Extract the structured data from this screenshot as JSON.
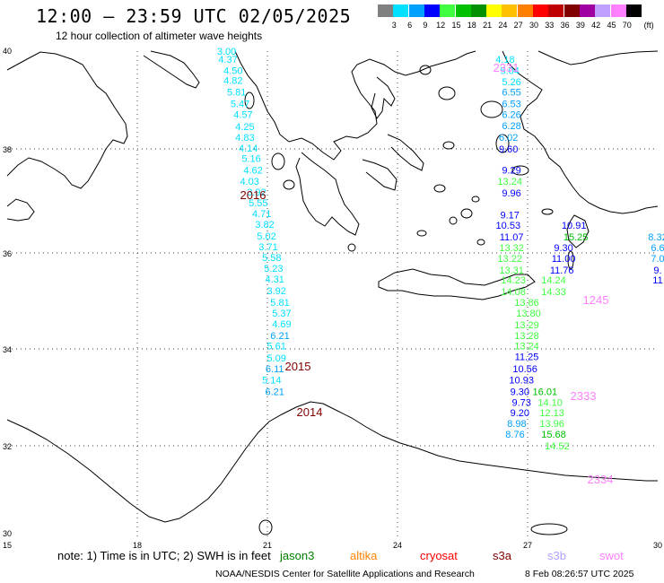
{
  "title": "12:00 – 23:59 UTC 02/05/2025",
  "subtitle": "12 hour collection of altimeter wave heights",
  "legend": {
    "unit": "(ft)",
    "bins": [
      {
        "label": "3",
        "color": "#808080"
      },
      {
        "label": "6",
        "color": "#00e0ff"
      },
      {
        "label": "9",
        "color": "#00a0ff"
      },
      {
        "label": "12",
        "color": "#0000ff"
      },
      {
        "label": "15",
        "color": "#40ff40"
      },
      {
        "label": "18",
        "color": "#00c000"
      },
      {
        "label": "21",
        "color": "#009000"
      },
      {
        "label": "24",
        "color": "#ffff00"
      },
      {
        "label": "27",
        "color": "#ffc000"
      },
      {
        "label": "30",
        "color": "#ff8000"
      },
      {
        "label": "33",
        "color": "#ff0000"
      },
      {
        "label": "36",
        "color": "#c00000"
      },
      {
        "label": "39",
        "color": "#800000"
      },
      {
        "label": "42",
        "color": "#a000a0"
      },
      {
        "label": "45",
        "color": "#c0a0ff"
      },
      {
        "label": "70",
        "color": "#ff80ff"
      },
      {
        "label": "",
        "color": "#000000"
      }
    ]
  },
  "axes": {
    "lon_ticks": [
      "15",
      "18",
      "21",
      "24",
      "27",
      "30"
    ],
    "lat_ticks": [
      "40",
      "38",
      "36",
      "34",
      "32",
      "30"
    ]
  },
  "tracks": [
    {
      "name": "track-2016",
      "time_label": "2016",
      "time_color": "#800000",
      "points": [
        {
          "v": "3.00",
          "lat": 39.93,
          "lon": 20.06
        },
        {
          "v": "4.37",
          "lat": 39.76,
          "lon": 20.09
        },
        {
          "v": "4.50",
          "lat": 39.53,
          "lon": 20.21
        },
        {
          "v": "4.82",
          "lat": 39.32,
          "lon": 20.21
        },
        {
          "v": "5.81",
          "lat": 39.08,
          "lon": 20.29
        },
        {
          "v": "5.47",
          "lat": 38.84,
          "lon": 20.37
        },
        {
          "v": "4.57",
          "lat": 38.62,
          "lon": 20.44
        },
        {
          "v": "4.25",
          "lat": 38.37,
          "lon": 20.48
        },
        {
          "v": "4.83",
          "lat": 38.15,
          "lon": 20.48
        },
        {
          "v": "4.14",
          "lat": 37.93,
          "lon": 20.56
        },
        {
          "v": "5.16",
          "lat": 37.71,
          "lon": 20.63
        },
        {
          "v": "4.62",
          "lat": 37.47,
          "lon": 20.67
        },
        {
          "v": "4.03",
          "lat": 37.24,
          "lon": 20.59
        },
        {
          "v": "3.92",
          "lat": 37.02,
          "lon": 20.75
        },
        {
          "v": "5.55",
          "lat": 36.8,
          "lon": 20.79
        },
        {
          "v": "4.71",
          "lat": 36.57,
          "lon": 20.87
        },
        {
          "v": "3.82",
          "lat": 36.35,
          "lon": 20.94
        },
        {
          "v": "5.02",
          "lat": 36.11,
          "lon": 20.98
        },
        {
          "v": "3.71",
          "lat": 35.89,
          "lon": 21.02
        },
        {
          "v": "5.58",
          "lat": 35.67,
          "lon": 21.1
        },
        {
          "v": "5.23",
          "lat": 35.44,
          "lon": 21.14
        },
        {
          "v": "4.31",
          "lat": 35.22,
          "lon": 21.17
        },
        {
          "v": "3.92",
          "lat": 34.98,
          "lon": 21.21
        },
        {
          "v": "5.81",
          "lat": 34.74,
          "lon": 21.29
        },
        {
          "v": "5.37",
          "lat": 34.52,
          "lon": 21.33
        },
        {
          "v": "4.69",
          "lat": 34.3,
          "lon": 21.33
        },
        {
          "v": "6.21",
          "lat": 34.06,
          "lon": 21.29
        }
      ]
    },
    {
      "name": "track-2015",
      "time_label": "2015",
      "time_color": "#800000",
      "points": [
        {
          "v": "5.61",
          "lat": 33.84,
          "lon": 21.21
        },
        {
          "v": "5.09",
          "lat": 33.59,
          "lon": 21.21
        }
      ]
    },
    {
      "name": "track-2014",
      "time_label": "2014",
      "time_color": "#800000",
      "points": [
        {
          "v": "6.11",
          "lat": 33.37,
          "lon": 21.17
        },
        {
          "v": "5.14",
          "lat": 33.14,
          "lon": 21.1
        },
        {
          "v": "6.21",
          "lat": 32.9,
          "lon": 21.17
        }
      ]
    },
    {
      "name": "track-2331",
      "time_label": "2331",
      "time_color": "#ff80ff",
      "points": [
        {
          "v": "4.18",
          "lat": 39.76,
          "lon": 26.48
        },
        {
          "v": "5.04",
          "lat": 39.53,
          "lon": 26.59
        },
        {
          "v": "5.26",
          "lat": 39.3,
          "lon": 26.63
        },
        {
          "v": "6.55",
          "lat": 39.08,
          "lon": 26.63
        },
        {
          "v": "6.53",
          "lat": 38.84,
          "lon": 26.63
        },
        {
          "v": "6.26",
          "lat": 38.62,
          "lon": 26.63
        },
        {
          "v": "6.28",
          "lat": 38.39,
          "lon": 26.63
        },
        {
          "v": "6.02",
          "lat": 38.15,
          "lon": 26.56
        },
        {
          "v": "9.60",
          "lat": 37.91,
          "lon": 26.56
        },
        {
          "v": "9.29",
          "lat": 37.47,
          "lon": 26.63
        },
        {
          "v": "13.24",
          "lat": 37.24,
          "lon": 26.59
        },
        {
          "v": "9.96",
          "lat": 37.0,
          "lon": 26.63
        },
        {
          "v": "9.17",
          "lat": 36.55,
          "lon": 26.59
        },
        {
          "v": "10.53",
          "lat": 36.33,
          "lon": 26.55
        },
        {
          "v": "11.07",
          "lat": 36.09,
          "lon": 26.63
        },
        {
          "v": "13.32",
          "lat": 35.87,
          "lon": 26.63
        },
        {
          "v": "13.22",
          "lat": 35.65,
          "lon": 26.59
        },
        {
          "v": "13.31",
          "lat": 35.41,
          "lon": 26.63
        },
        {
          "v": "14.23",
          "lat": 35.2,
          "lon": 26.67
        },
        {
          "v": "14.08",
          "lat": 34.96,
          "lon": 26.67
        }
      ]
    },
    {
      "name": "track-1245",
      "time_label": "1245",
      "time_color": "#ff80ff",
      "points": [
        {
          "v": "10.91",
          "lat": 36.33,
          "lon": 28.07
        },
        {
          "v": "15.25",
          "lat": 36.09,
          "lon": 28.11
        },
        {
          "v": "9.30",
          "lat": 35.87,
          "lon": 27.83
        },
        {
          "v": "11.00",
          "lat": 35.65,
          "lon": 27.83
        },
        {
          "v": "11.76",
          "lat": 35.41,
          "lon": 27.79
        },
        {
          "v": "14.24",
          "lat": 35.2,
          "lon": 27.6
        },
        {
          "v": "14.33",
          "lat": 34.96,
          "lon": 27.6
        }
      ]
    },
    {
      "name": "track-2333",
      "time_label": "2333",
      "time_color": "#ff80ff",
      "points": [
        {
          "v": "13.86",
          "lat": 34.74,
          "lon": 26.98
        },
        {
          "v": "13.80",
          "lat": 34.52,
          "lon": 27.02
        },
        {
          "v": "13.29",
          "lat": 34.28,
          "lon": 26.98
        },
        {
          "v": "13.28",
          "lat": 34.06,
          "lon": 26.98
        },
        {
          "v": "13.24",
          "lat": 33.84,
          "lon": 26.98
        },
        {
          "v": "11.25",
          "lat": 33.62,
          "lon": 26.98
        },
        {
          "v": "10.56",
          "lat": 33.37,
          "lon": 26.94
        },
        {
          "v": "10.93",
          "lat": 33.14,
          "lon": 26.86
        },
        {
          "v": "9.30",
          "lat": 32.9,
          "lon": 26.82
        },
        {
          "v": "9.73",
          "lat": 32.68,
          "lon": 26.86
        },
        {
          "v": "9.20",
          "lat": 32.46,
          "lon": 26.82
        }
      ]
    },
    {
      "name": "track-2334",
      "time_label": "2334",
      "time_color": "#ff80ff",
      "points": [
        {
          "v": "8.98",
          "lat": 32.24,
          "lon": 26.75
        },
        {
          "v": "8.76",
          "lat": 32.02,
          "lon": 26.71
        },
        {
          "v": "16.01",
          "lat": 32.9,
          "lon": 27.4
        },
        {
          "v": "14.10",
          "lat": 32.68,
          "lon": 27.52
        },
        {
          "v": "12.13",
          "lat": 32.46,
          "lon": 27.56
        },
        {
          "v": "13.96",
          "lat": 32.24,
          "lon": 27.56
        },
        {
          "v": "15.68",
          "lat": 32.02,
          "lon": 27.6
        },
        {
          "v": "14.52",
          "lat": 31.78,
          "lon": 27.68
        }
      ]
    },
    {
      "name": "track-edge",
      "time_label": "",
      "time_color": "#ff80ff",
      "points": [
        {
          "v": "8.32",
          "lat": 36.09,
          "lon": 30.0
        },
        {
          "v": "6.6",
          "lat": 35.87,
          "lon": 30.0
        },
        {
          "v": "7.0",
          "lat": 35.65,
          "lon": 30.0
        },
        {
          "v": "9.",
          "lat": 35.41,
          "lon": 30.0
        },
        {
          "v": "11",
          "lat": 35.2,
          "lon": 30.0
        }
      ]
    }
  ],
  "note": "note:  1) Time is in UTC;  2) SWH is in feet",
  "satellites": [
    {
      "name": "jason3",
      "color": "#008000"
    },
    {
      "name": "altika",
      "color": "#ff8000"
    },
    {
      "name": "cryosat",
      "color": "#ff0000"
    },
    {
      "name": "s3a",
      "color": "#800000"
    },
    {
      "name": "s3b",
      "color": "#b0a0ff"
    },
    {
      "name": "swot",
      "color": "#ff80ff"
    }
  ],
  "footer_left": "NOAA/NESDIS Center for Satellite Applications and Research",
  "footer_right": "8 Feb 08:26:57 UTC 2025"
}
